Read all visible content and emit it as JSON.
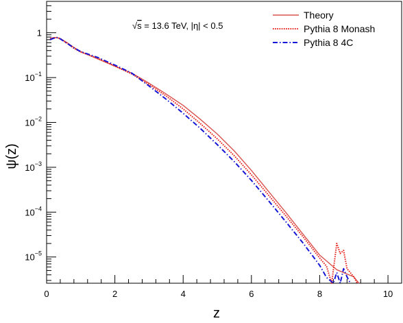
{
  "chart_data": {
    "type": "line",
    "title": "",
    "xlabel": "z",
    "ylabel": "ψ(z)",
    "xlim": [
      0,
      10.4
    ],
    "ylim": [
      2.6e-06,
      5
    ],
    "yscale": "log",
    "x_ticks": [
      {
        "v": 0,
        "label": "0"
      },
      {
        "v": 2,
        "label": "2"
      },
      {
        "v": 4,
        "label": "4"
      },
      {
        "v": 6,
        "label": "6"
      },
      {
        "v": 8,
        "label": "8"
      },
      {
        "v": 10,
        "label": "10"
      }
    ],
    "y_ticks": [
      {
        "v": 1,
        "base": "1",
        "exp": ""
      },
      {
        "v": 0.1,
        "base": "10",
        "exp": "−1"
      },
      {
        "v": 0.01,
        "base": "10",
        "exp": "−2"
      },
      {
        "v": 0.001,
        "base": "10",
        "exp": "−3"
      },
      {
        "v": 0.0001,
        "base": "10",
        "exp": "−4"
      },
      {
        "v": 1e-05,
        "base": "10",
        "exp": "−5"
      }
    ],
    "annotation": {
      "sqrt": "√",
      "s": "s",
      "rest": " = 13.6 TeV, |η| < 0.5"
    },
    "legend_position": "top-right",
    "series": [
      {
        "name": "Theory",
        "color": "#d9534f",
        "style": "solid",
        "x": [
          0.1,
          0.2,
          0.3,
          0.4,
          0.6,
          0.8,
          1.0,
          1.5,
          2.0,
          2.5,
          3.0,
          3.5,
          4.0,
          4.5,
          5.0,
          5.5,
          6.0,
          6.5,
          7.0,
          7.5,
          8.0,
          8.5,
          9.0,
          9.15
        ],
        "y": [
          0.74,
          0.78,
          0.78,
          0.74,
          0.6,
          0.47,
          0.38,
          0.26,
          0.18,
          0.125,
          0.075,
          0.043,
          0.024,
          0.0118,
          0.0055,
          0.0023,
          0.00085,
          0.00029,
          0.0001,
          3.3e-05,
          1.1e-05,
          5.2e-06,
          3.6e-06,
          2.6e-06
        ]
      },
      {
        "name": "Pythia 8 Monash",
        "color": "#e8201a",
        "style": "dotted",
        "x": [
          0.1,
          0.2,
          0.3,
          0.4,
          0.6,
          0.8,
          1.0,
          1.5,
          2.0,
          2.5,
          3.0,
          3.5,
          4.0,
          4.5,
          5.0,
          5.5,
          6.0,
          6.5,
          7.0,
          7.5,
          8.0,
          8.2,
          8.35,
          8.5,
          8.6,
          8.7,
          8.8,
          9.0,
          9.1
        ],
        "y": [
          0.72,
          0.76,
          0.78,
          0.74,
          0.58,
          0.45,
          0.37,
          0.27,
          0.18,
          0.12,
          0.07,
          0.039,
          0.02,
          0.0095,
          0.0043,
          0.0018,
          0.00068,
          0.00024,
          8.4e-05,
          2.9e-05,
          9.5e-06,
          6.2e-06,
          2.2e-06,
          2e-05,
          1.2e-05,
          1.4e-05,
          5.5e-06,
          3.6e-06,
          2.6e-06
        ]
      },
      {
        "name": "Pythia 8 4C",
        "color": "#1515d6",
        "style": "dashdot",
        "x": [
          0.1,
          0.2,
          0.3,
          0.4,
          0.6,
          0.8,
          1.0,
          1.5,
          2.0,
          2.5,
          3.0,
          3.5,
          4.0,
          4.5,
          5.0,
          5.5,
          6.0,
          6.5,
          7.0,
          7.5,
          8.0,
          8.2,
          8.4,
          8.5,
          8.6,
          8.7,
          8.8,
          8.9
        ],
        "y": [
          0.7,
          0.75,
          0.78,
          0.73,
          0.58,
          0.46,
          0.38,
          0.28,
          0.19,
          0.125,
          0.065,
          0.033,
          0.016,
          0.0074,
          0.0032,
          0.00133,
          0.00051,
          0.00018,
          6.2e-05,
          2.1e-05,
          6.5e-06,
          3.5e-06,
          1.3e-06,
          4.5e-06,
          1.9e-06,
          5.5e-06,
          3.6e-06,
          2.6e-06
        ]
      }
    ]
  }
}
